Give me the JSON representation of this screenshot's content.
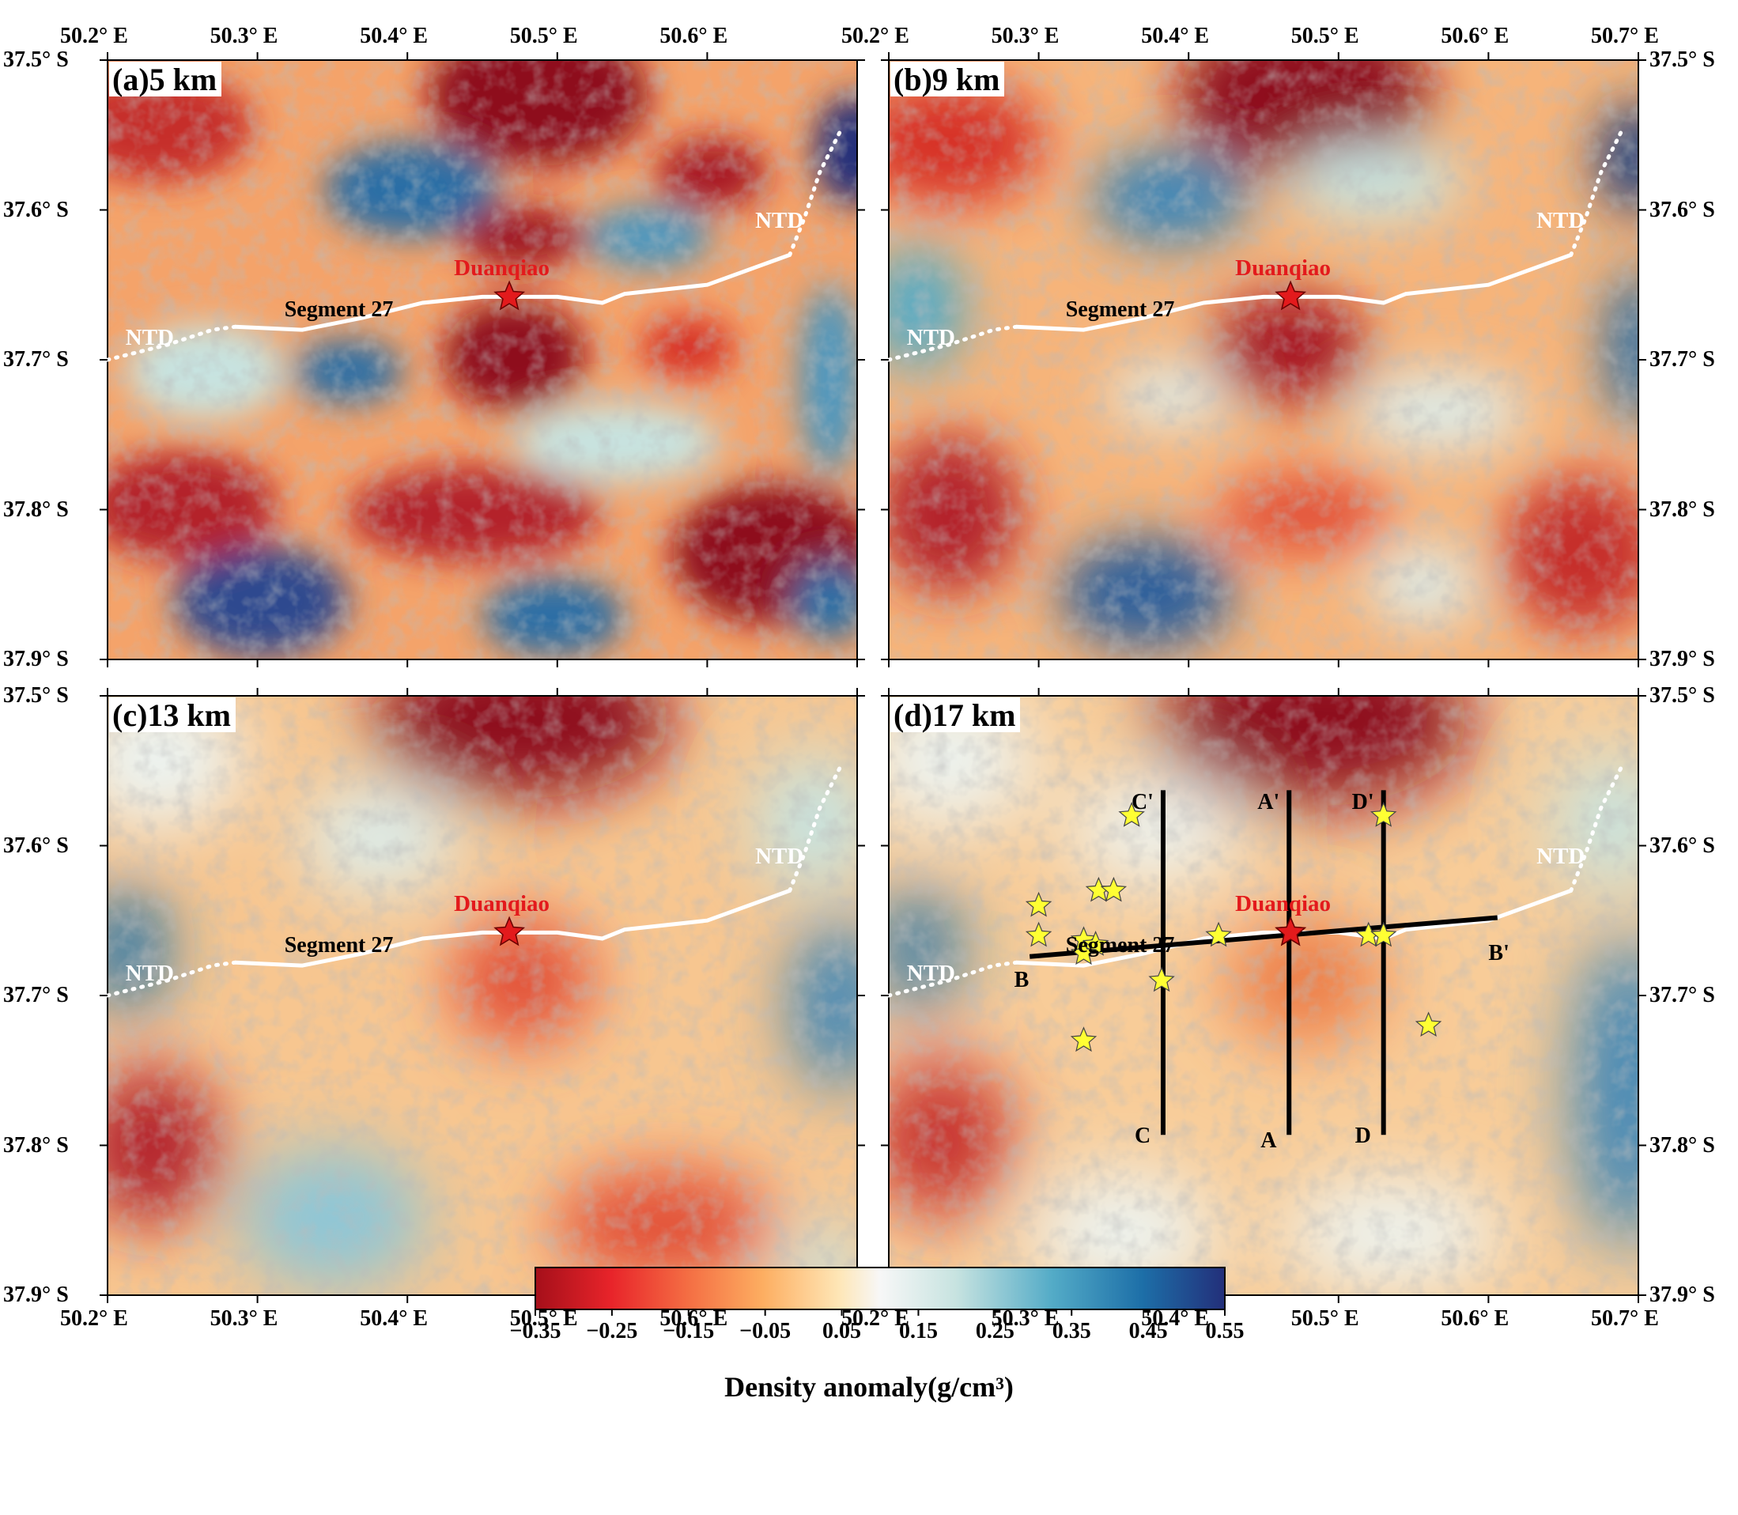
{
  "panels": [
    {
      "title": "(a)5 km",
      "depth_km": 5
    },
    {
      "title": "(b)9 km",
      "depth_km": 9
    },
    {
      "title": "(c)13 km",
      "depth_km": 13
    },
    {
      "title": "(d)17 km",
      "depth_km": 17
    }
  ],
  "map_labels": {
    "epicenter": "Duanqiao",
    "segment": "Segment 27",
    "ntd_west": "NTD",
    "ntd_east": "NTD"
  },
  "profiles": [
    {
      "start": "A",
      "end": "A'"
    },
    {
      "start": "B",
      "end": "B'"
    },
    {
      "start": "C",
      "end": "C'"
    },
    {
      "start": "D",
      "end": "D'"
    }
  ],
  "axes": {
    "lon_ticks": [
      "50.2° E",
      "50.3° E",
      "50.4° E",
      "50.5° E",
      "50.6° E",
      "50.7° E"
    ],
    "lat_ticks": [
      "37.5° S",
      "37.6° S",
      "37.7° S",
      "37.8° S",
      "37.9° S"
    ]
  },
  "colorbar": {
    "label": "Density anomaly(g/cm³)",
    "ticks": [
      "-0.35",
      "-0.25",
      "-0.15",
      "-0.05",
      "0.05",
      "0.15",
      "0.25",
      "0.35",
      "0.45",
      "0.55"
    ],
    "colors": [
      "#a50f1a",
      "#e8242a",
      "#f46d43",
      "#fdae61",
      "#fee6b6",
      "#f7f7f7",
      "#c7e3e0",
      "#53abc7",
      "#1d6fa8",
      "#232f7a"
    ]
  },
  "colors": {
    "epicenter_star": "#e31a1c",
    "event_star": "#ffff33",
    "epicenter_text": "#e31a1c",
    "fault_trace": "#ffffff"
  }
}
